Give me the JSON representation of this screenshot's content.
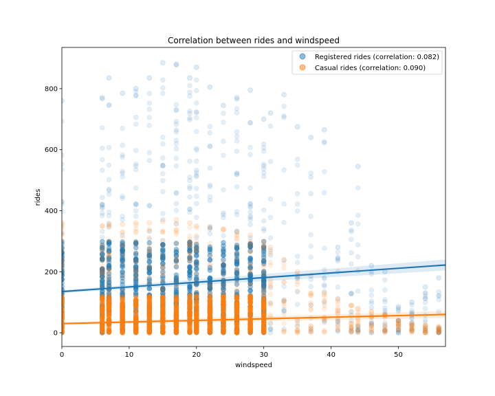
{
  "chart_data": {
    "type": "scatter",
    "title": "Correlation between rides and windspeed",
    "xlabel": "windspeed",
    "ylabel": "rides",
    "xlim": [
      0,
      57
    ],
    "ylim": [
      -45,
      935
    ],
    "xticks": [
      0,
      10,
      20,
      30,
      40,
      50
    ],
    "yticks": [
      0,
      200,
      400,
      600,
      800
    ],
    "legend_position": "top-right",
    "windspeed_values": [
      0,
      6,
      7,
      9,
      11,
      13,
      15,
      17,
      19,
      20,
      22,
      24,
      26,
      28,
      30,
      31,
      33,
      35,
      37,
      39,
      41,
      43,
      44,
      46,
      48,
      50,
      52,
      54,
      56
    ],
    "series": [
      {
        "name": "Registered rides (correlation: 0.082)",
        "color": "#1f77b4",
        "max_by_windspeed": [
          760,
          770,
          835,
          785,
          800,
          835,
          885,
          880,
          835,
          870,
          805,
          745,
          770,
          795,
          700,
          720,
          780,
          675,
          640,
          665,
          280,
          360,
          545,
          220,
          200,
          85,
          100,
          150,
          180
        ],
        "trend_start": [
          0,
          135
        ],
        "trend_end": [
          57,
          222
        ]
      },
      {
        "name": "Casual rides (correlation: 0.090)",
        "color": "#ff7f0e",
        "max_by_windspeed": [
          360,
          350,
          355,
          355,
          360,
          360,
          365,
          370,
          360,
          350,
          345,
          340,
          330,
          320,
          300,
          280,
          240,
          200,
          130,
          130,
          110,
          90,
          80,
          70,
          60,
          40,
          30,
          25,
          20
        ],
        "trend_start": [
          0,
          30
        ],
        "trend_end": [
          57,
          60
        ]
      }
    ]
  }
}
